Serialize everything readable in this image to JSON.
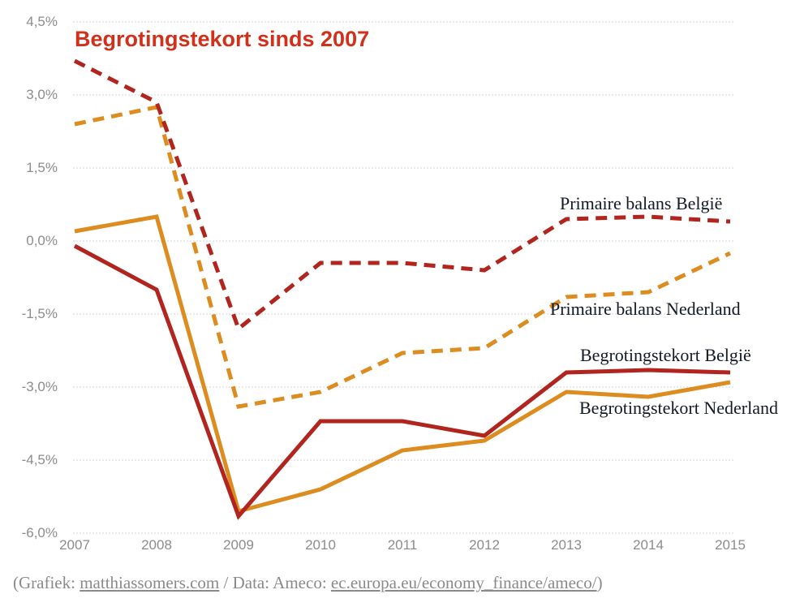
{
  "title": "Begrotingstekort sinds 2007",
  "colors": {
    "red": "#b2241e",
    "orange": "#dd8c20",
    "title_red": "#d2301a",
    "axis_text": "#8c8c8c",
    "label_text": "#121a26",
    "gridline": "#d4d4d4",
    "background": "#ffffff"
  },
  "footer": {
    "prefix": "(Grafiek: ",
    "link1": "matthiassomers.com",
    "middle": " / Data: Ameco: ",
    "link2": "ec.europa.eu/economy_finance/ameco/",
    "suffix": ")"
  },
  "chart_data": {
    "type": "line",
    "title": "Begrotingstekort sinds 2007",
    "xlabel": "",
    "ylabel": "",
    "xlim": [
      2007,
      2015
    ],
    "ylim": [
      -6.0,
      4.5
    ],
    "grid": "horizontal dotted lines only",
    "legend_position": "inline labels at right of chart",
    "x_tick_labels": [
      "2007",
      "2008",
      "2009",
      "2010",
      "2011",
      "2012",
      "2013",
      "2014",
      "2015"
    ],
    "y_ticks": [
      {
        "label": "4,5%",
        "value": 4.5
      },
      {
        "label": "3,0%",
        "value": 3.0
      },
      {
        "label": "1,5%",
        "value": 1.5
      },
      {
        "label": "0,0%",
        "value": 0.0
      },
      {
        "label": "-1,5%",
        "value": -1.5
      },
      {
        "label": "-3,0%",
        "value": -3.0
      },
      {
        "label": "-4,5%",
        "value": -4.5
      },
      {
        "label": "-6,0%",
        "value": -6.0
      }
    ],
    "series": [
      {
        "id": "primaire-balans-belgie",
        "name": "Primaire balans België",
        "color_key": "red",
        "style": "dashed",
        "values": [
          3.7,
          2.85,
          -1.8,
          -0.45,
          -0.45,
          -0.6,
          0.45,
          0.5,
          0.4
        ]
      },
      {
        "id": "primaire-balans-nederland",
        "name": "Primaire balans Nederland",
        "color_key": "orange",
        "style": "dashed",
        "values": [
          2.4,
          2.75,
          -3.4,
          -3.1,
          -2.3,
          -2.2,
          -1.15,
          -1.05,
          -0.25
        ]
      },
      {
        "id": "begrotingstekort-belgie",
        "name": "Begrotingstekort België",
        "color_key": "red",
        "style": "solid",
        "values": [
          -0.1,
          -1.0,
          -5.65,
          -3.7,
          -3.7,
          -4.0,
          -2.7,
          -2.65,
          -2.7
        ]
      },
      {
        "id": "begrotingstekort-nederland",
        "name": "Begrotingstekort Nederland",
        "color_key": "orange",
        "style": "solid",
        "values": [
          0.2,
          0.5,
          -5.55,
          -5.1,
          -4.3,
          -4.1,
          -3.1,
          -3.2,
          -2.9
        ]
      }
    ]
  }
}
